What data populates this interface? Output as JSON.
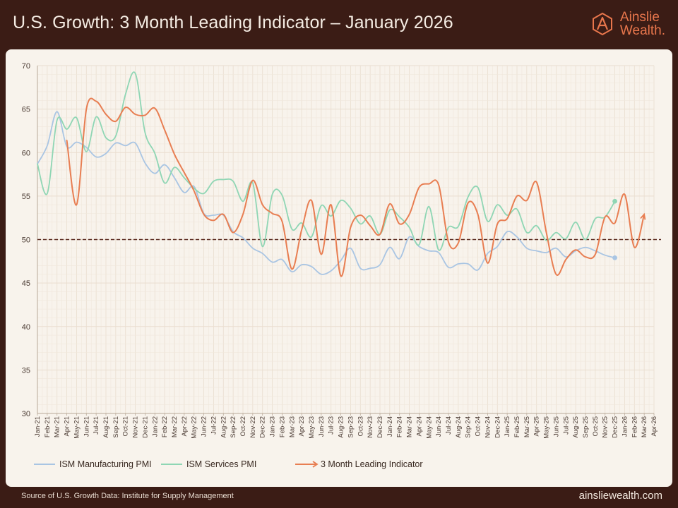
{
  "header": {
    "title": "U.S. Growth: 3 Month Leading Indicator – January 2026"
  },
  "brand": {
    "line1": "Ainslie",
    "line2": "Wealth.",
    "logo_icon": "ainslie-a-hexagon-logo",
    "color": "#e8764c"
  },
  "footer": {
    "source": "Source of U.S. Growth Data: Institute for Supply Management",
    "website": "ainsliewealth.com"
  },
  "colors": {
    "manufacturing": "#a9c5e3",
    "services": "#8fd6b4",
    "leading": "#e87e52",
    "reference": "#5a2a20",
    "grid": "#e9ddcf"
  },
  "chart_data": {
    "type": "line",
    "title": "U.S. Growth: 3 Month Leading Indicator – January 2026",
    "xlabel": "",
    "ylabel": "",
    "ylim": [
      30,
      70
    ],
    "yticks": [
      30,
      35,
      40,
      45,
      50,
      55,
      60,
      65,
      70
    ],
    "reference_line": 50,
    "grid": true,
    "legend_position": "bottom",
    "categories": [
      "Jan-21",
      "Feb-21",
      "Mar-21",
      "Apr-21",
      "May-21",
      "Jun-21",
      "Jul-21",
      "Aug-21",
      "Sep-21",
      "Oct-21",
      "Nov-21",
      "Dec-21",
      "Jan-22",
      "Feb-22",
      "Mar-22",
      "Apr-22",
      "May-22",
      "Jun-22",
      "Jul-22",
      "Aug-22",
      "Sep-22",
      "Oct-22",
      "Nov-22",
      "Dec-22",
      "Jan-23",
      "Feb-23",
      "Mar-23",
      "Apr-23",
      "May-23",
      "Jun-23",
      "Jul-23",
      "Aug-23",
      "Sep-23",
      "Oct-23",
      "Nov-23",
      "Dec-23",
      "Jan-24",
      "Feb-24",
      "Mar-24",
      "Apr-24",
      "May-24",
      "Jun-24",
      "Jul-24",
      "Aug-24",
      "Sep-24",
      "Oct-24",
      "Nov-24",
      "Dec-24",
      "Jan-25",
      "Feb-25",
      "Mar-25",
      "Apr-25",
      "May-25",
      "Jun-25",
      "Jul-25",
      "Aug-25",
      "Sep-25",
      "Oct-25",
      "Nov-25",
      "Dec-25",
      "Jan-26",
      "Feb-26",
      "Mar-26",
      "Apr-26"
    ],
    "series": [
      {
        "name": "ISM Manufacturing PMI",
        "color": "#a9c5e3",
        "values": [
          58.7,
          60.8,
          64.7,
          60.7,
          61.2,
          60.6,
          59.5,
          59.9,
          61.1,
          60.8,
          61.1,
          58.8,
          57.6,
          58.6,
          57.1,
          55.4,
          56.1,
          53.0,
          52.8,
          52.8,
          50.9,
          50.2,
          49.0,
          48.4,
          47.4,
          47.7,
          46.3,
          47.1,
          46.9,
          46.0,
          46.4,
          47.6,
          49.0,
          46.7,
          46.7,
          47.1,
          49.1,
          47.8,
          50.3,
          49.2,
          48.7,
          48.5,
          46.8,
          47.2,
          47.2,
          46.5,
          48.4,
          49.2,
          50.9,
          50.3,
          49.0,
          48.7,
          48.5,
          49.0,
          48.0,
          48.7,
          49.1,
          48.7,
          48.2,
          47.9,
          null,
          null,
          null,
          null
        ]
      },
      {
        "name": "ISM Services PMI",
        "color": "#8fd6b4",
        "values": [
          58.7,
          55.3,
          63.7,
          62.7,
          64.0,
          60.1,
          64.1,
          61.7,
          61.9,
          66.7,
          69.1,
          62.3,
          59.9,
          56.5,
          58.3,
          57.1,
          55.9,
          55.3,
          56.7,
          56.9,
          56.7,
          54.4,
          56.5,
          49.2,
          55.2,
          55.1,
          51.2,
          51.9,
          50.3,
          53.9,
          52.7,
          54.5,
          53.6,
          51.8,
          52.7,
          50.6,
          53.4,
          52.6,
          51.4,
          49.4,
          53.8,
          48.8,
          51.4,
          51.5,
          54.9,
          56.0,
          52.1,
          54.0,
          52.8,
          53.5,
          50.8,
          51.6,
          49.9,
          50.8,
          50.1,
          52.0,
          50.0,
          52.4,
          52.6,
          54.4,
          null,
          null,
          null,
          null
        ]
      },
      {
        "name": "3 Month Leading Indicator",
        "color": "#e87e52",
        "values": [
          null,
          null,
          null,
          61.4,
          54.0,
          65.0,
          65.9,
          64.4,
          63.6,
          65.2,
          64.4,
          64.3,
          65.1,
          62.6,
          59.8,
          57.7,
          55.6,
          52.9,
          52.2,
          52.9,
          50.8,
          52.9,
          56.8,
          54.0,
          53.0,
          52.1,
          46.6,
          51.1,
          54.5,
          48.3,
          54.0,
          45.8,
          51.4,
          52.8,
          51.6,
          50.6,
          54.1,
          51.8,
          52.9,
          56.0,
          56.4,
          56.3,
          49.7,
          49.6,
          54.2,
          52.9,
          47.3,
          51.8,
          52.4,
          55.0,
          54.5,
          56.6,
          50.8,
          46.0,
          47.7,
          48.8,
          48.0,
          48.3,
          52.6,
          51.9,
          55.2,
          49.1,
          52.9,
          null
        ]
      }
    ]
  }
}
